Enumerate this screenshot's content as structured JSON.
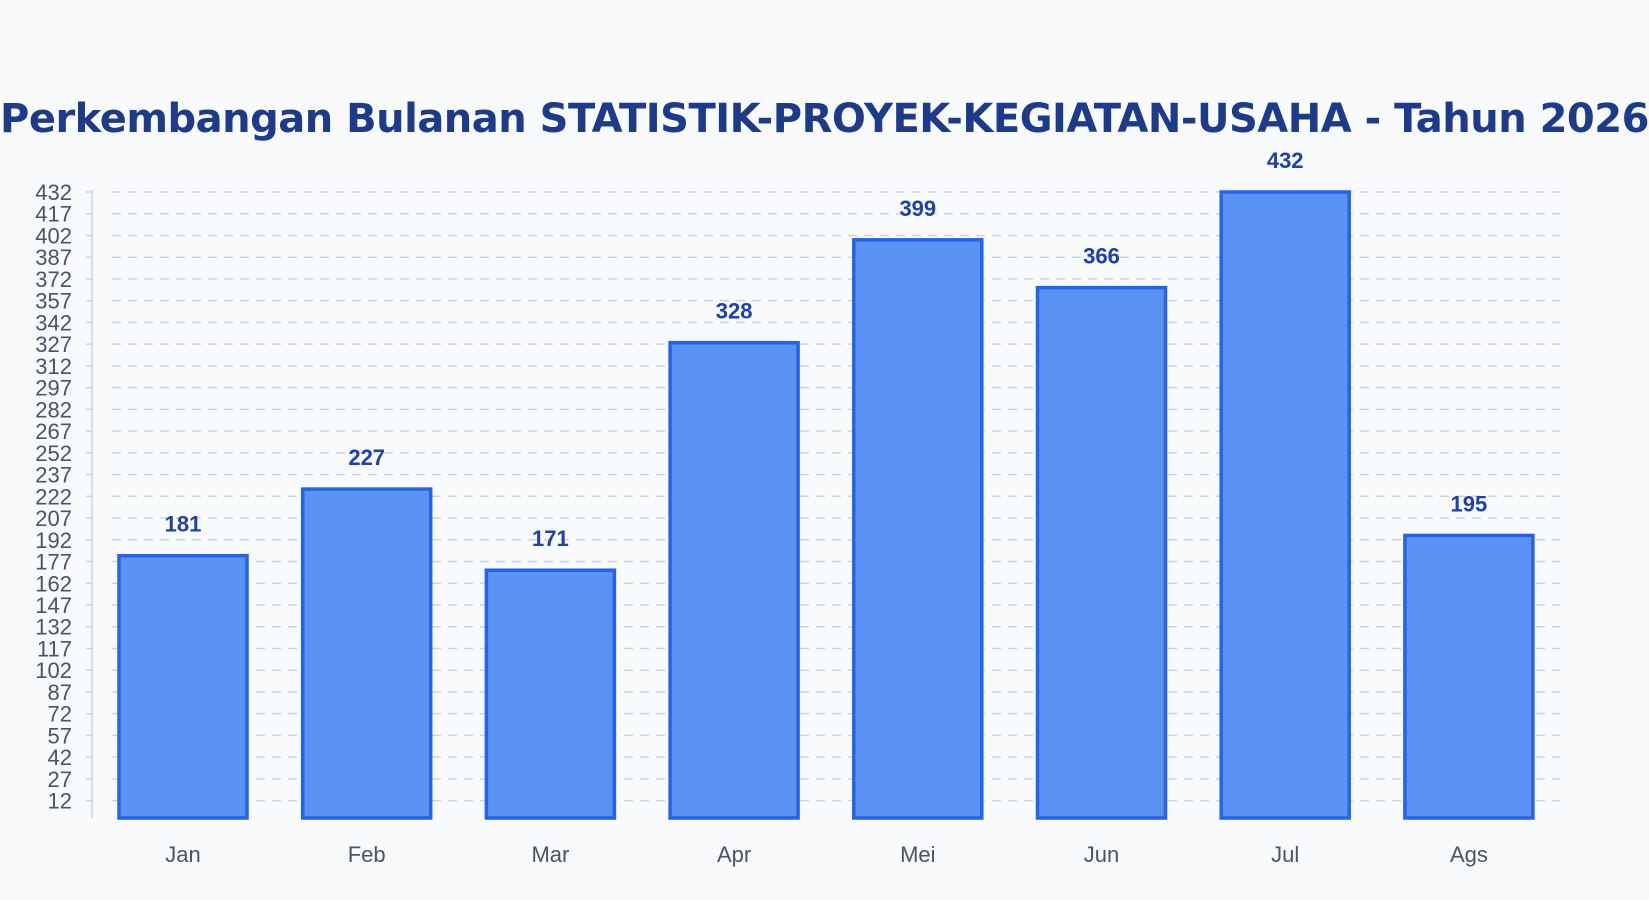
{
  "chart_data": {
    "type": "bar",
    "title": "Perkembangan Bulanan STATISTIK-PROYEK-KEGIATAN-USAHA - Tahun 2026",
    "xlabel": "",
    "ylabel": "",
    "categories": [
      "Jan",
      "Feb",
      "Mar",
      "Apr",
      "Mei",
      "Jun",
      "Jul",
      "Ags"
    ],
    "values": [
      181,
      227,
      171,
      328,
      399,
      366,
      432,
      195
    ],
    "yticks": [
      12,
      27,
      42,
      57,
      72,
      87,
      102,
      117,
      132,
      147,
      162,
      177,
      192,
      207,
      222,
      237,
      252,
      267,
      282,
      297,
      312,
      327,
      342,
      357,
      372,
      387,
      402,
      417,
      432
    ],
    "ylim": [
      0,
      432
    ],
    "grid": true,
    "legend": "none",
    "colors": {
      "bar_fill": "#5b93f5",
      "bar_stroke": "#2563eb",
      "title": "#1e3a8a",
      "data_label": "#1e40af",
      "grid": "#cbd5e1"
    }
  }
}
